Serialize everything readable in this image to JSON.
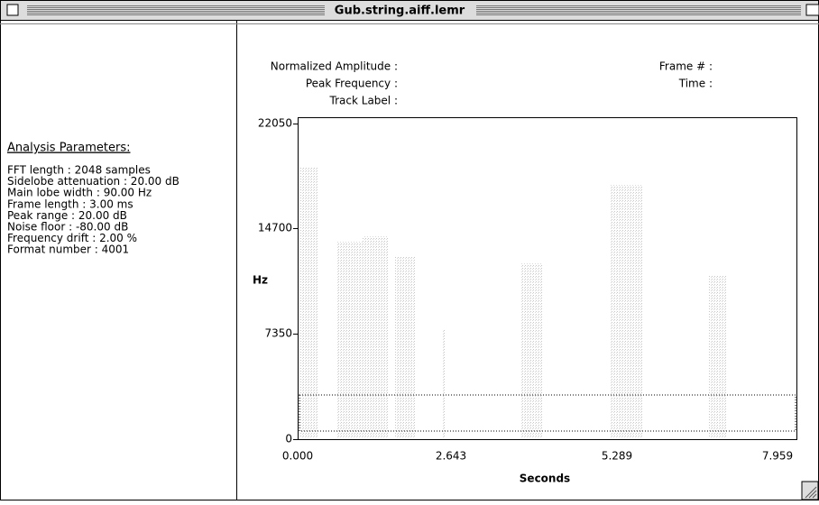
{
  "window": {
    "title": "Gub.string.aiff.lemr"
  },
  "parameters": {
    "heading": "Analysis Parameters:",
    "lines": [
      "FFT length : 2048 samples",
      "Sidelobe attenuation : 20.00 dB",
      "Main lobe width : 90.00 Hz",
      "Frame length :  3.00 ms",
      "Peak range : 20.00 dB",
      "Noise floor : -80.00 dB",
      "Frequency drift : 2.00 %",
      "Format number : 4001"
    ]
  },
  "readout": {
    "left": [
      "Normalized Amplitude :",
      "Peak Frequency :",
      "Track Label :"
    ],
    "right": [
      "Frame # :",
      "Time :"
    ]
  },
  "plot": {
    "y_label": "Hz",
    "x_label": "Seconds",
    "y_tick_labels": [
      "22050",
      "14700",
      "7350",
      "0"
    ],
    "x_tick_labels": [
      "0.000",
      "2.643",
      "5.289",
      "7.959"
    ]
  }
}
